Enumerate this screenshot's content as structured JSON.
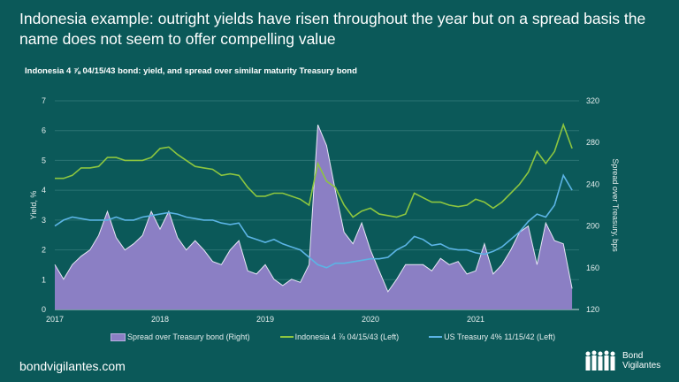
{
  "header": {
    "title": "Indonesia example: outright yields have risen throughout the year but on a spread basis the name does not seem to offer compelling value"
  },
  "footer": {
    "site": "bondvigilantes.com",
    "logo_text_1": "Bond",
    "logo_text_2": "Vigilantes"
  },
  "colors": {
    "background": "#0b5959",
    "spread": "#8b7fc4",
    "indonesia": "#8dc63f",
    "ust": "#5bb4e5"
  },
  "chart_data": {
    "type": "line",
    "title": "Indonesia 4 ⅞ 04/15/43 bond: yield, and spread over similar maturity Treasury bond",
    "ylabel": "Yield, %",
    "y2label": "Spread over Treasury, bps",
    "ylim": [
      0,
      7
    ],
    "y2lim": [
      120,
      320
    ],
    "yticks": [
      "0",
      "1",
      "2",
      "3",
      "4",
      "5",
      "6",
      "7"
    ],
    "y2ticks": [
      "120",
      "160",
      "200",
      "240",
      "280",
      "320"
    ],
    "xticks": [
      "2017",
      "2018",
      "2019",
      "2020",
      "2021"
    ],
    "xlim": [
      "2017-01",
      "2021-12"
    ],
    "grid": true,
    "legend": "bottom",
    "x": [
      "2017-01",
      "2017-02",
      "2017-03",
      "2017-04",
      "2017-05",
      "2017-06",
      "2017-07",
      "2017-08",
      "2017-09",
      "2017-10",
      "2017-11",
      "2017-12",
      "2018-01",
      "2018-02",
      "2018-03",
      "2018-04",
      "2018-05",
      "2018-06",
      "2018-07",
      "2018-08",
      "2018-09",
      "2018-10",
      "2018-11",
      "2018-12",
      "2019-01",
      "2019-02",
      "2019-03",
      "2019-04",
      "2019-05",
      "2019-06",
      "2019-07",
      "2019-08",
      "2019-09",
      "2019-10",
      "2019-11",
      "2019-12",
      "2020-01",
      "2020-02",
      "2020-03",
      "2020-04",
      "2020-05",
      "2020-06",
      "2020-07",
      "2020-08",
      "2020-09",
      "2020-10",
      "2020-11",
      "2020-12",
      "2021-01",
      "2021-02",
      "2021-03",
      "2021-04",
      "2021-05",
      "2021-06",
      "2021-07",
      "2021-08",
      "2021-09",
      "2021-10",
      "2021-11",
      "2021-12"
    ],
    "series": [
      {
        "name": "Spread over Treasury bond (Right)",
        "axis": "right",
        "style": "area",
        "values": [
          163,
          149,
          163,
          171,
          177,
          191,
          214,
          189,
          177,
          183,
          191,
          214,
          197,
          214,
          189,
          177,
          186,
          177,
          166,
          163,
          177,
          186,
          157,
          154,
          163,
          149,
          143,
          149,
          146,
          163,
          297,
          277,
          234,
          194,
          183,
          203,
          177,
          157,
          137,
          149,
          163,
          163,
          163,
          157,
          169,
          163,
          166,
          154,
          157,
          183,
          154,
          163,
          177,
          194,
          200,
          163,
          203,
          186,
          183,
          140
        ]
      },
      {
        "name": "Indonesia 4 ⅞ 04/15/43 (Left)",
        "axis": "left",
        "style": "line",
        "values": [
          4.4,
          4.4,
          4.5,
          4.75,
          4.75,
          4.8,
          5.1,
          5.1,
          5.0,
          5.0,
          5.0,
          5.1,
          5.4,
          5.45,
          5.2,
          5.0,
          4.8,
          4.75,
          4.7,
          4.5,
          4.55,
          4.5,
          4.1,
          3.8,
          3.8,
          3.9,
          3.9,
          3.8,
          3.7,
          3.5,
          4.9,
          4.3,
          4.1,
          3.5,
          3.1,
          3.3,
          3.4,
          3.2,
          3.15,
          3.1,
          3.2,
          3.9,
          3.75,
          3.6,
          3.6,
          3.5,
          3.45,
          3.5,
          3.7,
          3.6,
          3.4,
          3.6,
          3.9,
          4.2,
          4.6,
          5.3,
          4.9,
          5.3,
          6.2,
          5.4
        ]
      },
      {
        "name": "US Treasury 4% 11/15/42 (Left)",
        "axis": "left",
        "style": "line",
        "values": [
          2.8,
          3.0,
          3.1,
          3.05,
          3.0,
          3.0,
          3.0,
          3.1,
          3.0,
          3.0,
          3.1,
          3.15,
          3.2,
          3.25,
          3.2,
          3.1,
          3.05,
          3.0,
          3.0,
          2.9,
          2.85,
          2.9,
          2.45,
          2.35,
          2.25,
          2.35,
          2.2,
          2.1,
          2.0,
          1.75,
          1.5,
          1.4,
          1.55,
          1.55,
          1.6,
          1.65,
          1.7,
          1.7,
          1.75,
          2.0,
          2.15,
          2.45,
          2.35,
          2.15,
          2.2,
          2.05,
          2.0,
          2.0,
          1.9,
          1.85,
          1.95,
          2.1,
          2.35,
          2.6,
          2.95,
          3.2,
          3.1,
          3.5,
          4.5,
          4.0
        ]
      }
    ]
  }
}
